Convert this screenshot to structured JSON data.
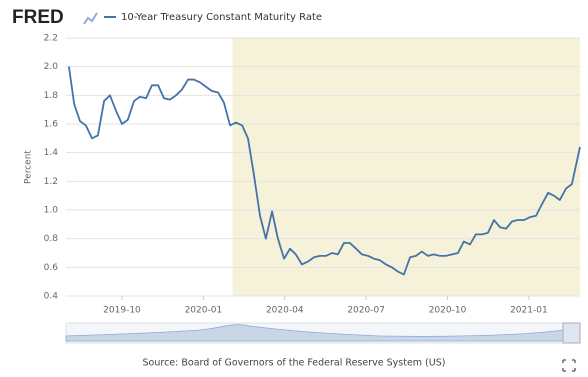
{
  "chart_data": {
    "type": "line",
    "logo": "FRED",
    "ylabel": "Percent",
    "source": "Source: Board of Governors of the Federal Reserve System (US)",
    "x": [
      2019.587,
      2019.603,
      2019.621,
      2019.639,
      2019.658,
      2019.676,
      2019.695,
      2019.713,
      2019.732,
      2019.75,
      2019.768,
      2019.787,
      2019.805,
      2019.824,
      2019.842,
      2019.861,
      2019.879,
      2019.897,
      2019.916,
      2019.934,
      2019.953,
      2019.971,
      2019.99,
      2020.008,
      2020.026,
      2020.045,
      2020.063,
      2020.082,
      2020.1,
      2020.119,
      2020.137,
      2020.155,
      2020.174,
      2020.192,
      2020.211,
      2020.229,
      2020.248,
      2020.266,
      2020.284,
      2020.303,
      2020.321,
      2020.34,
      2020.358,
      2020.377,
      2020.395,
      2020.413,
      2020.432,
      2020.45,
      2020.469,
      2020.487,
      2020.506,
      2020.524,
      2020.542,
      2020.561,
      2020.579,
      2020.598,
      2020.616,
      2020.635,
      2020.653,
      2020.671,
      2020.69,
      2020.708,
      2020.727,
      2020.745,
      2020.764,
      2020.782,
      2020.8,
      2020.819,
      2020.837,
      2020.856,
      2020.874,
      2020.893,
      2020.911,
      2020.93,
      2020.948,
      2020.966,
      2020.985,
      2021.003,
      2021.022,
      2021.04,
      2021.059,
      2021.077,
      2021.095,
      2021.114,
      2021.132,
      2021.157
    ],
    "series": [
      {
        "name": "10-Year Treasury Constant Maturity Rate",
        "color": "#4572a7",
        "values": [
          2.0,
          1.74,
          1.62,
          1.59,
          1.5,
          1.52,
          1.76,
          1.8,
          1.69,
          1.6,
          1.63,
          1.76,
          1.79,
          1.78,
          1.87,
          1.87,
          1.78,
          1.77,
          1.8,
          1.84,
          1.91,
          1.91,
          1.89,
          1.86,
          1.83,
          1.82,
          1.75,
          1.59,
          1.61,
          1.59,
          1.5,
          1.25,
          0.96,
          0.8,
          0.99,
          0.8,
          0.66,
          0.73,
          0.69,
          0.62,
          0.64,
          0.67,
          0.68,
          0.68,
          0.7,
          0.69,
          0.77,
          0.77,
          0.73,
          0.69,
          0.68,
          0.66,
          0.65,
          0.62,
          0.6,
          0.57,
          0.55,
          0.67,
          0.68,
          0.71,
          0.68,
          0.69,
          0.68,
          0.68,
          0.69,
          0.7,
          0.78,
          0.76,
          0.83,
          0.83,
          0.84,
          0.93,
          0.88,
          0.87,
          0.92,
          0.93,
          0.93,
          0.95,
          0.96,
          1.04,
          1.12,
          1.1,
          1.07,
          1.15,
          1.18,
          1.44
        ]
      }
    ],
    "xlim": [
      2019.578,
      2021.157
    ],
    "xticks": [
      {
        "value": 2019.75,
        "label": "2019-10"
      },
      {
        "value": 2020.0,
        "label": "2020-01"
      },
      {
        "value": 2020.25,
        "label": "2020-04"
      },
      {
        "value": 2020.5,
        "label": "2020-07"
      },
      {
        "value": 2020.75,
        "label": "2020-10"
      },
      {
        "value": 2021.0,
        "label": "2021-01"
      }
    ],
    "ylim": [
      0.4,
      2.2
    ],
    "yticks": [
      0.4,
      0.6,
      0.8,
      {
        "value": 1,
        "label": "1.0"
      },
      1.2,
      1.4,
      1.6,
      1.8,
      {
        "value": 2,
        "label": "2.0"
      },
      2.2
    ],
    "grid": true,
    "recession_shading": [
      2020.09,
      2021.157
    ],
    "shading_color": "#f5f2d9"
  }
}
